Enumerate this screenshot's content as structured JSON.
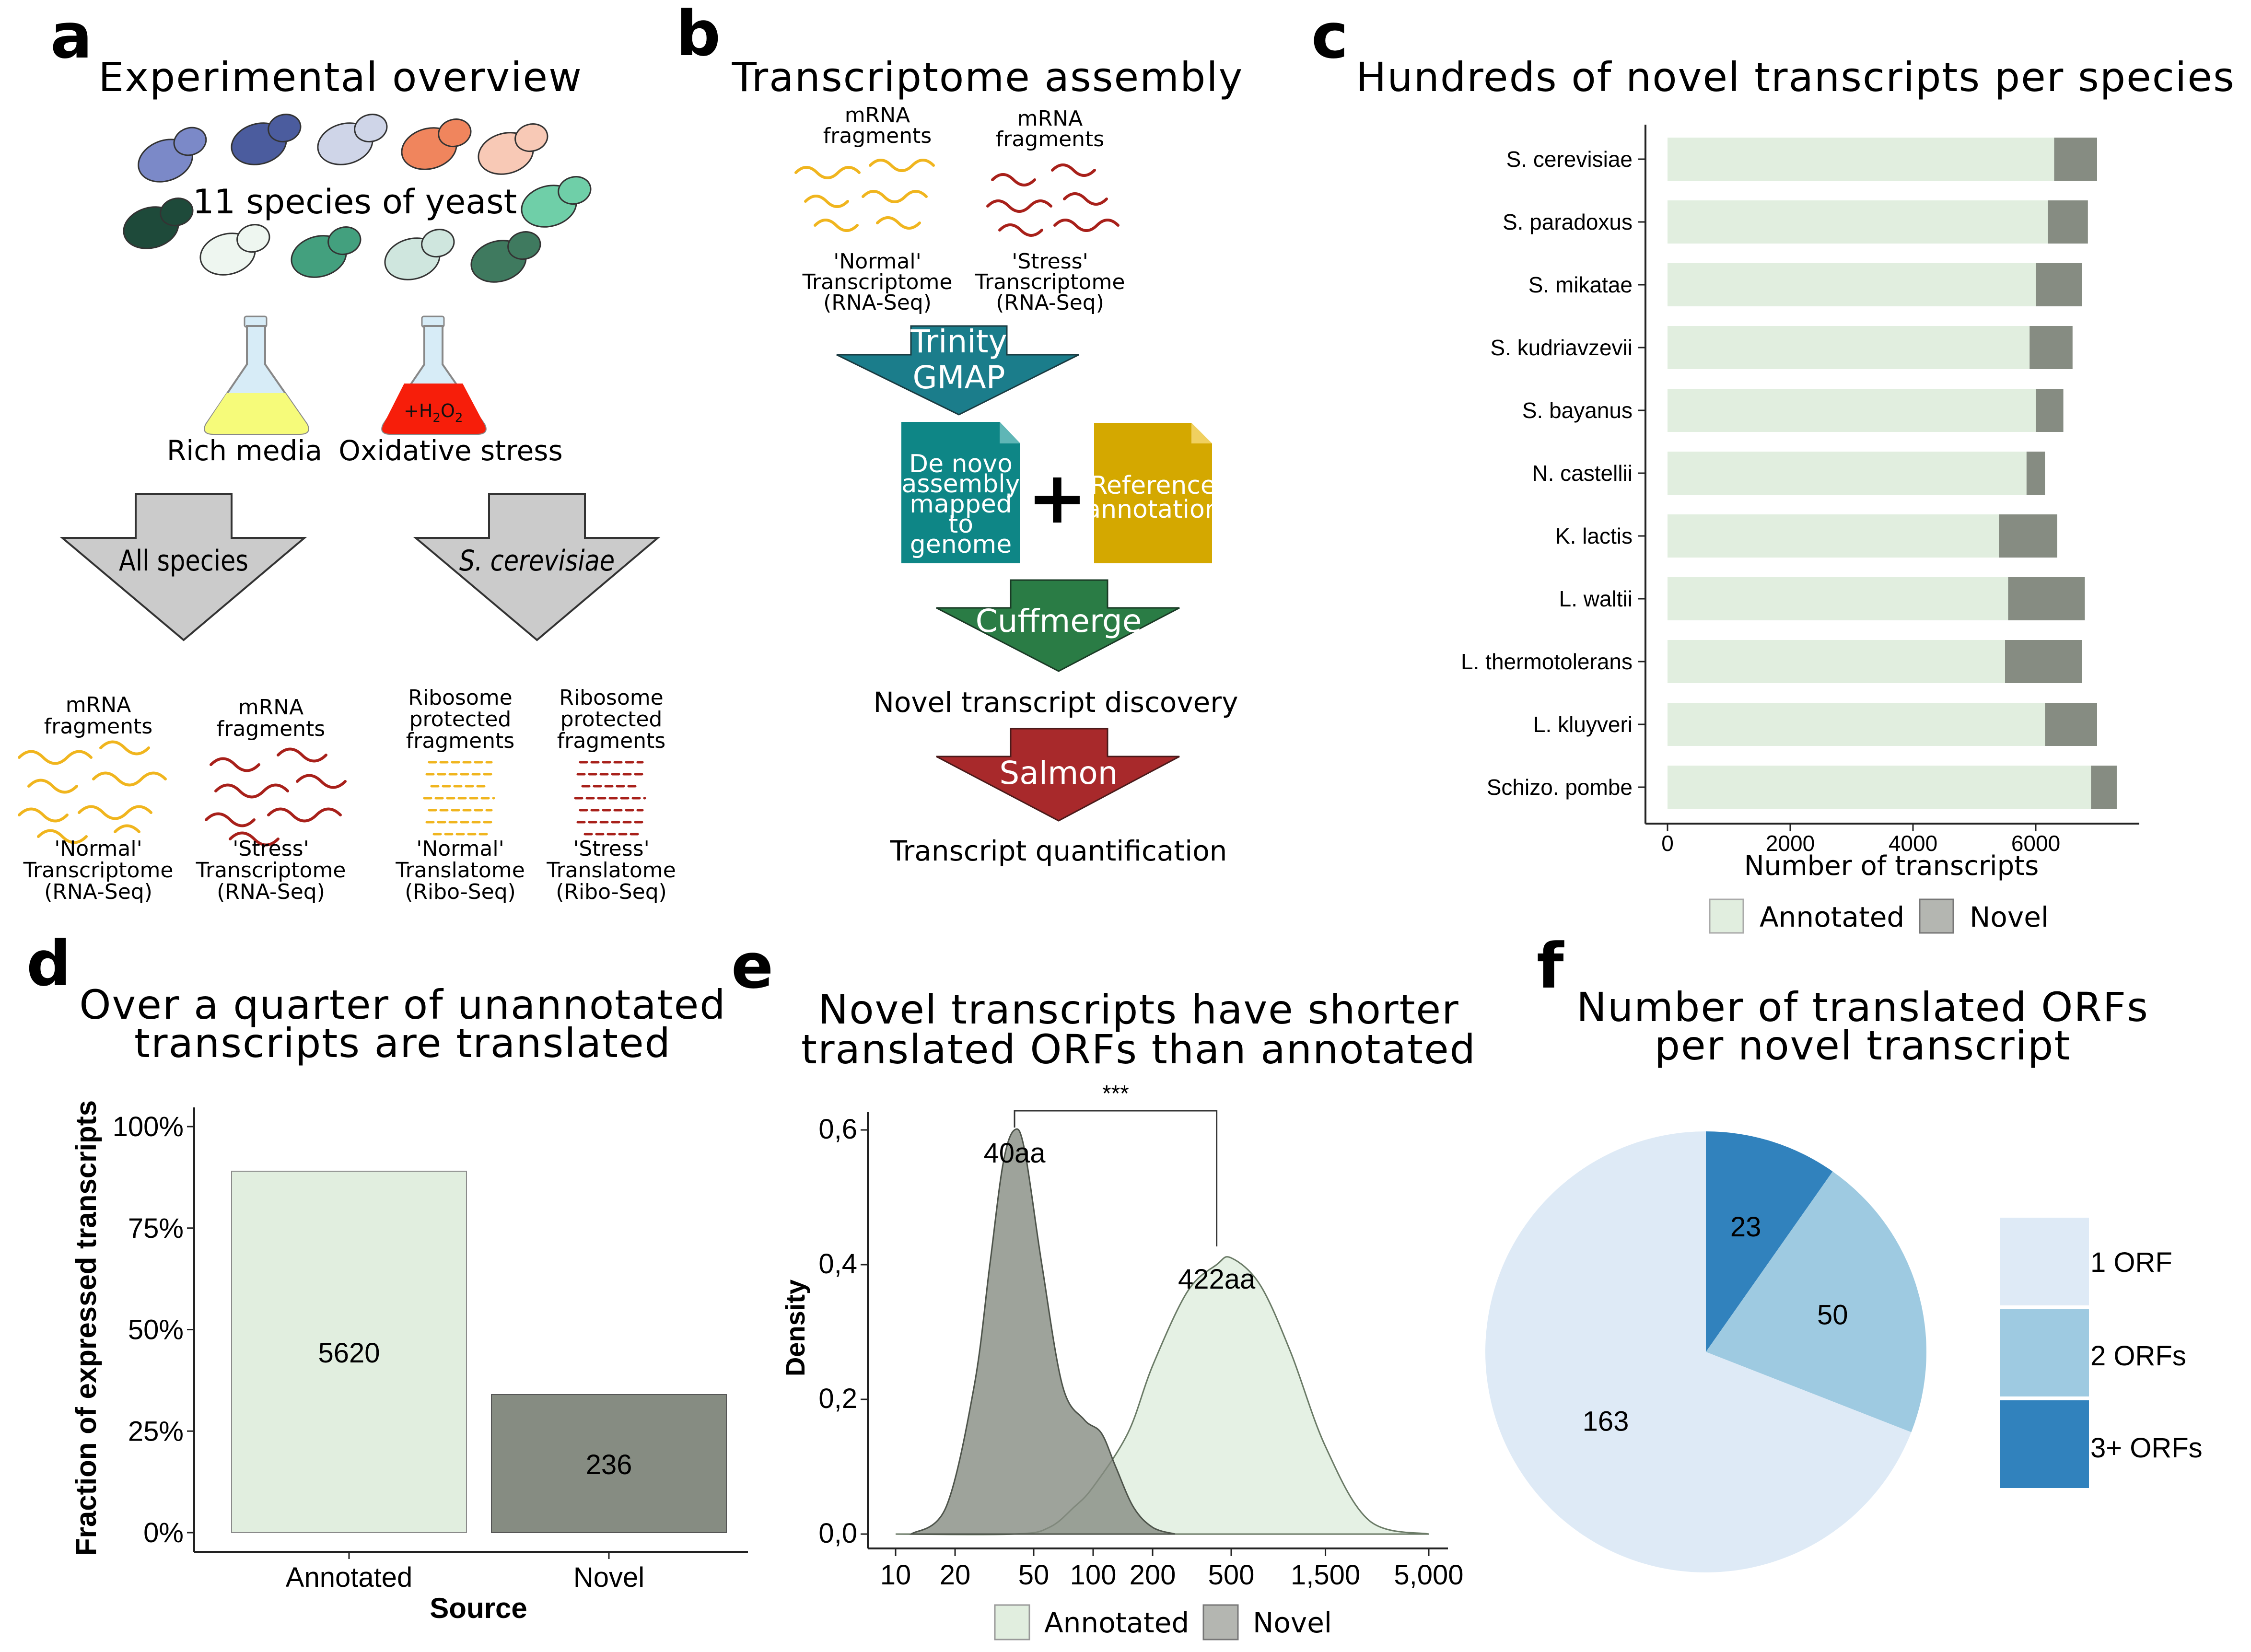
{
  "colors": {
    "annotated": "#e1eedf",
    "novel": "#868c82",
    "pie1": "#deeaf6",
    "pie2": "#9ecae1",
    "pie3": "#3182bd",
    "teal_arrow": "#1b7d8b",
    "green_arrow": "#2a7c45",
    "red_arrow": "#a8292b",
    "yellow_wave": "#f0b51e",
    "red_wave": "#a8201a"
  },
  "panel_a": {
    "letter": "a",
    "title": "Experimental overview",
    "species_text": "11 species of yeast",
    "rich_media": "Rich media",
    "oxidative": "Oxidative stress",
    "h2o2": "+H",
    "h2o2_sub": "2",
    "h2o2_o": "O",
    "h2o2_sub2": "2",
    "arrow_left": "All species",
    "arrow_right": "S. cerevisiae",
    "groups": [
      {
        "l1": "mRNA",
        "l2": "fragments",
        "l3": "'Normal'",
        "l4": "Transcriptome",
        "l5": "(RNA-Seq)"
      },
      {
        "l1": "mRNA",
        "l2": "fragments",
        "l3": "'Stress'",
        "l4": "Transcriptome",
        "l5": "(RNA-Seq)"
      },
      {
        "l0": "Ribosome",
        "l1": "protected",
        "l2": "fragments",
        "l3": "'Normal'",
        "l4": "Translatome",
        "l5": "(Ribo-Seq)"
      },
      {
        "l0": "Ribosome",
        "l1": "protected",
        "l2": "fragments",
        "l3": "'Stress'",
        "l4": "Translatome",
        "l5": "(Ribo-Seq)"
      }
    ]
  },
  "panel_b": {
    "letter": "b",
    "title": "Transcriptome assembly",
    "groups": [
      {
        "l1": "mRNA",
        "l2": "fragments",
        "l3": "'Normal'",
        "l4": "Transcriptome",
        "l5": "(RNA-Seq)"
      },
      {
        "l1": "mRNA",
        "l2": "fragments",
        "l3": "'Stress'",
        "l4": "Transcriptome",
        "l5": "(RNA-Seq)"
      }
    ],
    "arrow1_l1": "Trinity",
    "arrow1_l2": "GMAP",
    "doc1": [
      "De novo",
      "assembly",
      "mapped",
      "to",
      "genome"
    ],
    "plus": "+",
    "doc2": [
      "Reference",
      "annotation"
    ],
    "arrow2": "Cuffmerge",
    "step2": "Novel transcript discovery",
    "arrow3": "Salmon",
    "step3": "Transcript quantification"
  },
  "panel_c": {
    "letter": "c",
    "title": "Hundreds of novel transcripts per species",
    "xlabel": "Number of transcripts",
    "legend": [
      "Annotated",
      "Novel"
    ]
  },
  "panel_d": {
    "letter": "d",
    "title_l1": "Over a quarter of unannotated",
    "title_l2": "transcripts are translated",
    "ylabel": "Fraction of expressed transcripts",
    "xlabel": "Source"
  },
  "panel_e": {
    "letter": "e",
    "title_l1": "Novel transcripts have shorter",
    "title_l2": "translated ORFs than annotated",
    "ylabel": "Density",
    "sig": "***",
    "label_novel": "40aa",
    "label_annot": "422aa",
    "legend": [
      "Annotated",
      "Novel"
    ]
  },
  "panel_f": {
    "letter": "f",
    "title_l1": "Number of translated ORFs",
    "title_l2": "per novel transcript",
    "legend": [
      "1 ORF",
      "2 ORFs",
      "3+ ORFs"
    ]
  },
  "chart_data": [
    {
      "type": "bar",
      "orientation": "horizontal",
      "stacked": true,
      "title": "Hundreds of novel transcripts per species",
      "xlabel": "Number of transcripts",
      "categories": [
        "S. cerevisiae",
        "S. paradoxus",
        "S. mikatae",
        "S. kudriavzevii",
        "S. bayanus",
        "N. castellii",
        "K. lactis",
        "L. waltii",
        "L. thermotolerans",
        "L. kluyveri",
        "Schizo. pombe"
      ],
      "series": [
        {
          "name": "Annotated",
          "values": [
            6300,
            6200,
            6000,
            5900,
            6000,
            5850,
            5400,
            5550,
            5500,
            6150,
            6900
          ]
        },
        {
          "name": "Novel",
          "values": [
            700,
            650,
            750,
            700,
            450,
            300,
            950,
            1250,
            1250,
            850,
            420
          ]
        }
      ],
      "xticks": [
        "0",
        "2000",
        "4000",
        "6000"
      ],
      "xlim": [
        0,
        7500
      ],
      "legend_position": "bottom"
    },
    {
      "type": "bar",
      "title": "Over a quarter of unannotated transcripts are translated",
      "xlabel": "Source",
      "ylabel": "Fraction of expressed transcripts",
      "categories": [
        "Annotated",
        "Novel"
      ],
      "values": [
        0.89,
        0.34
      ],
      "data_labels": [
        "5620",
        "236"
      ],
      "yticks": [
        "0%",
        "25%",
        "50%",
        "75%",
        "100%"
      ],
      "ylim": [
        0,
        1.0
      ]
    },
    {
      "type": "area",
      "title": "Novel transcripts have shorter translated ORFs than annotated",
      "ylabel": "Density",
      "xscale": "log",
      "xticks": [
        "10",
        "20",
        "50",
        "100",
        "200",
        "500",
        "1,500",
        "5,000"
      ],
      "yticks": [
        "0,0",
        "0,2",
        "0,4",
        "0,6"
      ],
      "ylim": [
        0,
        0.62
      ],
      "series": [
        {
          "name": "Annotated",
          "peak_aa": 422,
          "x": [
            10,
            40,
            60,
            80,
            100,
            150,
            200,
            300,
            422,
            500,
            700,
            1000,
            1500,
            2500,
            5000
          ],
          "y": [
            0,
            0.0,
            0.01,
            0.04,
            0.07,
            0.15,
            0.25,
            0.36,
            0.4,
            0.41,
            0.37,
            0.27,
            0.13,
            0.02,
            0
          ]
        },
        {
          "name": "Novel",
          "peak_aa": 40,
          "x": [
            12,
            18,
            25,
            30,
            35,
            40,
            45,
            55,
            70,
            90,
            110,
            130,
            160,
            200,
            260
          ],
          "y": [
            0,
            0.04,
            0.22,
            0.4,
            0.55,
            0.6,
            0.57,
            0.4,
            0.22,
            0.17,
            0.15,
            0.1,
            0.04,
            0.01,
            0
          ]
        }
      ],
      "annotations": [
        "***",
        "40aa",
        "422aa"
      ],
      "legend_position": "bottom"
    },
    {
      "type": "pie",
      "title": "Number of translated ORFs per novel transcript",
      "categories": [
        "1 ORF",
        "2 ORFs",
        "3+ ORFs"
      ],
      "values": [
        163,
        50,
        23
      ]
    }
  ]
}
